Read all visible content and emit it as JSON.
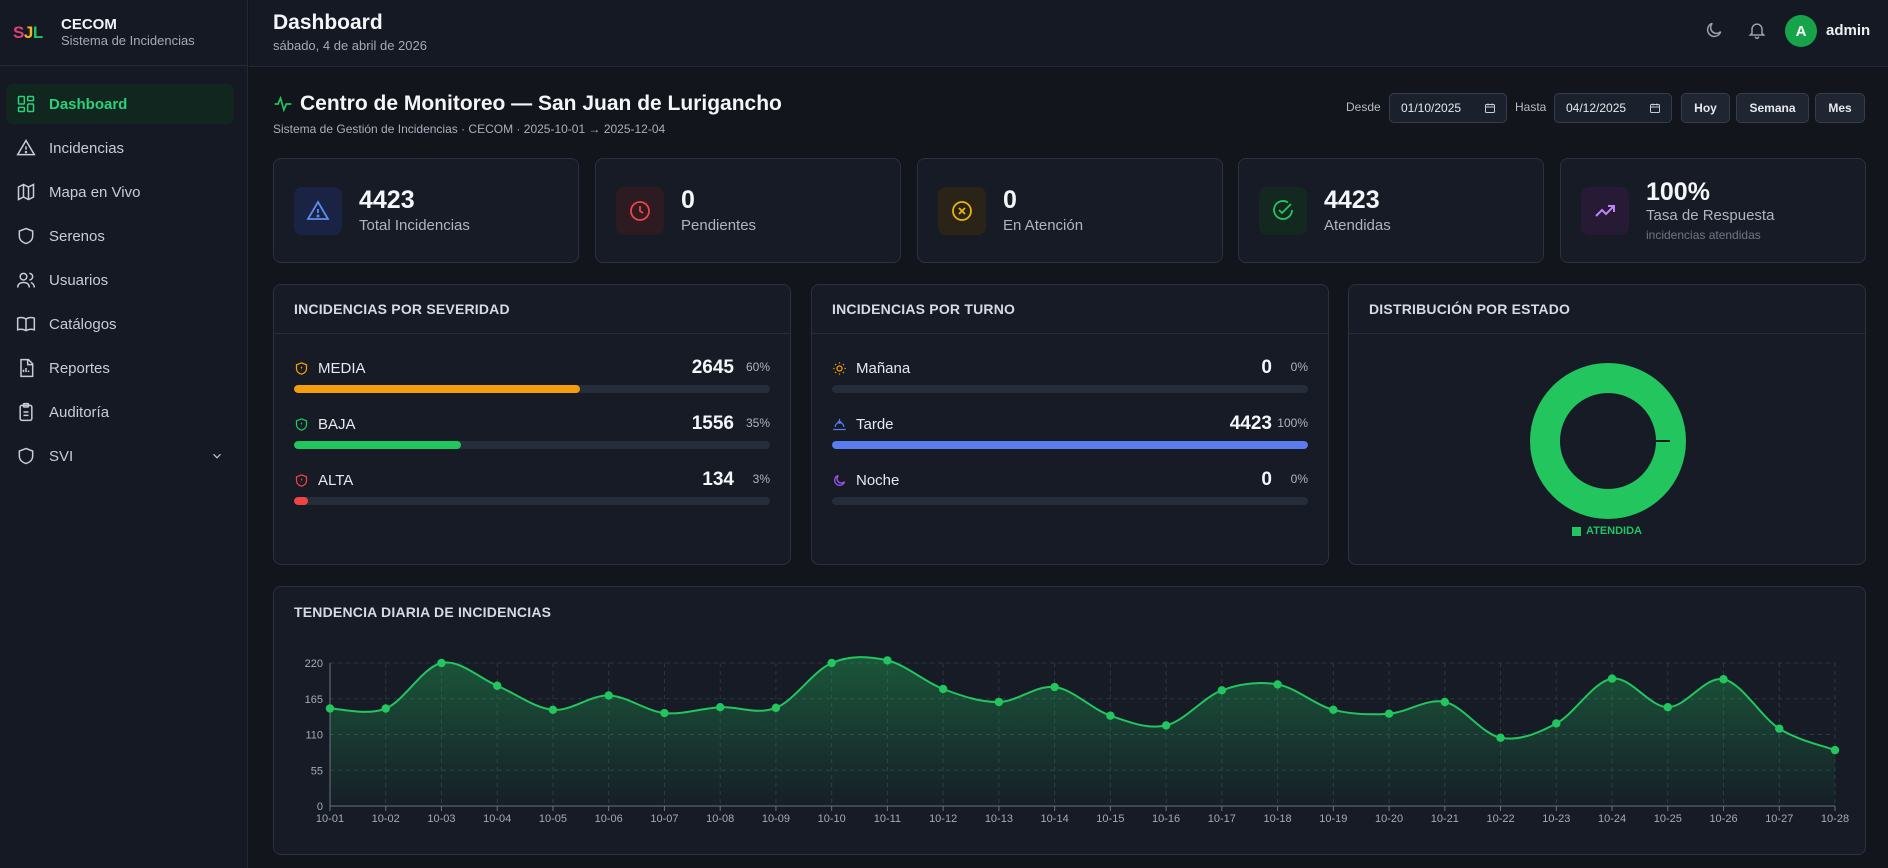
{
  "brand": {
    "logo_s": "S",
    "logo_j": "J",
    "logo_l": "L",
    "title": "CECOM",
    "subtitle": "Sistema de Incidencias"
  },
  "sidebar": {
    "items": [
      {
        "label": "Dashboard",
        "icon": "dashboard-icon"
      },
      {
        "label": "Incidencias",
        "icon": "warning-icon"
      },
      {
        "label": "Mapa en Vivo",
        "icon": "map-icon"
      },
      {
        "label": "Serenos",
        "icon": "shield-icon"
      },
      {
        "label": "Usuarios",
        "icon": "users-icon"
      },
      {
        "label": "Catálogos",
        "icon": "book-icon"
      },
      {
        "label": "Reportes",
        "icon": "report-icon"
      },
      {
        "label": "Auditoría",
        "icon": "clipboard-icon"
      },
      {
        "label": "SVI",
        "icon": "shield-icon"
      }
    ]
  },
  "header": {
    "title": "Dashboard",
    "date": "sábado, 4 de abril de 2026",
    "avatar_letter": "A",
    "user": "admin"
  },
  "main": {
    "title": "Centro de Monitoreo — San Juan de Lurigancho",
    "subtitle": "Sistema de Gestión de Incidencias · CECOM · 2025-10-01 → 2025-12-04",
    "filters": {
      "desde_label": "Desde",
      "desde_value": "01/10/2025",
      "hasta_label": "Hasta",
      "hasta_value": "04/12/2025",
      "hoy": "Hoy",
      "semana": "Semana",
      "mes": "Mes"
    }
  },
  "stats": [
    {
      "value": "4423",
      "label": "Total Incidencias",
      "color": "#5b8def"
    },
    {
      "value": "0",
      "label": "Pendientes",
      "color": "#ef4444"
    },
    {
      "value": "0",
      "label": "En Atención",
      "color": "#eab308"
    },
    {
      "value": "4423",
      "label": "Atendidas",
      "color": "#22c55e"
    },
    {
      "value": "100%",
      "label": "Tasa de Respuesta",
      "note": "incidencias atendidas",
      "color": "#c084fc"
    }
  ],
  "severity": {
    "title": "INCIDENCIAS POR SEVERIDAD",
    "rows": [
      {
        "name": "MEDIA",
        "value": "2645",
        "pct": "60%",
        "fraction": 0.6,
        "color": "#f59e0b"
      },
      {
        "name": "BAJA",
        "value": "1556",
        "pct": "35%",
        "fraction": 0.35,
        "color": "#22c55e"
      },
      {
        "name": "ALTA",
        "value": "134",
        "pct": "3%",
        "fraction": 0.03,
        "color": "#ef4444"
      }
    ]
  },
  "shift": {
    "title": "INCIDENCIAS POR TURNO",
    "rows": [
      {
        "name": "Mañana",
        "value": "0",
        "pct": "0%",
        "fraction": 0,
        "color": "#f59e0b"
      },
      {
        "name": "Tarde",
        "value": "4423",
        "pct": "100%",
        "fraction": 1,
        "color": "#5b7cf0"
      },
      {
        "name": "Noche",
        "value": "0",
        "pct": "0%",
        "fraction": 0,
        "color": "#a855f7"
      }
    ]
  },
  "status_dist": {
    "title": "DISTRIBUCIÓN POR ESTADO",
    "legend": "ATENDIDA",
    "color": "#22c55e"
  },
  "trend": {
    "title": "TENDENCIA DIARIA DE INCIDENCIAS"
  },
  "chart_data": {
    "type": "area",
    "title": "TENDENCIA DIARIA DE INCIDENCIAS",
    "x": [
      "10-01",
      "10-02",
      "10-03",
      "10-04",
      "10-05",
      "10-06",
      "10-07",
      "10-08",
      "10-09",
      "10-10",
      "10-11",
      "10-12",
      "10-13",
      "10-14",
      "10-15",
      "10-16",
      "10-17",
      "10-18",
      "10-19",
      "10-20",
      "10-21",
      "10-22",
      "10-23",
      "10-24",
      "10-25",
      "10-26",
      "10-27",
      "10-28"
    ],
    "values": [
      150,
      150,
      220,
      185,
      148,
      170,
      143,
      152,
      151,
      220,
      224,
      180,
      160,
      183,
      139,
      124,
      178,
      187,
      148,
      142,
      160,
      105,
      127,
      196,
      152,
      195,
      119,
      86
    ],
    "yticks": [
      0,
      55,
      110,
      165,
      220
    ],
    "ylim": [
      0,
      220
    ],
    "grid": true,
    "color": "#22c55e"
  }
}
